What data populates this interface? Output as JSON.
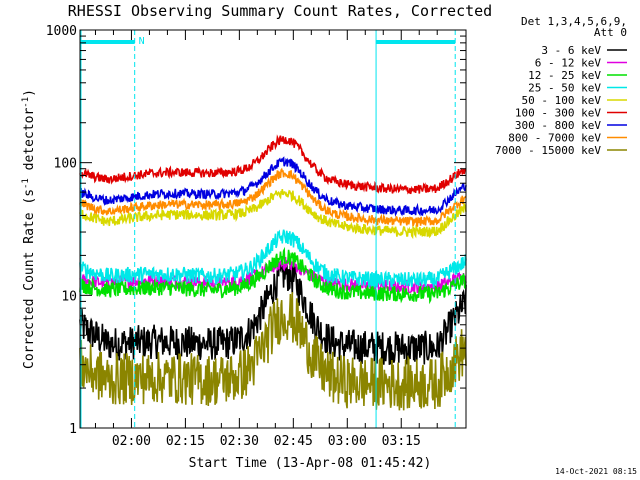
{
  "chart_data": {
    "type": "line",
    "title": "RHESSI Observing Summary Count Rates, Corrected",
    "xlabel": "Start Time (13-Apr-08 01:45:42)",
    "ylabel_parts": {
      "main": "Corrected Count Rate (s",
      "sup1": "-1",
      "mid": " detector",
      "sup2": "-1",
      "end": ")"
    },
    "y_scale": "log",
    "ylim": [
      1,
      1000
    ],
    "xlim_minutes": [
      105.7,
      213.0
    ],
    "x_ticks": [
      {
        "min": 120,
        "label": "02:00"
      },
      {
        "min": 135,
        "label": "02:15"
      },
      {
        "min": 150,
        "label": "02:30"
      },
      {
        "min": 165,
        "label": "02:45"
      },
      {
        "min": 180,
        "label": "03:00"
      },
      {
        "min": 195,
        "label": "03:15"
      }
    ],
    "y_ticks": [
      {
        "value": 1,
        "label": "1"
      },
      {
        "value": 10,
        "label": "10"
      },
      {
        "value": 100,
        "label": "100"
      },
      {
        "value": 1000,
        "label": "1000"
      }
    ],
    "legend_header": [
      "Det 1,3,4,5,6,9,",
      "Att 0"
    ],
    "night_marker": {
      "label": "N",
      "color": "#00e5ee",
      "intervals": [
        [
          105.7,
          120.9
        ],
        [
          188.0,
          210.0
        ]
      ]
    },
    "timestamp": "14-Oct-2021 08:15",
    "shape": {
      "peak_min": 163,
      "peak_width": 7.5,
      "trough_min": 142,
      "trough_width": 11,
      "wave_amp": 0.22,
      "wave_period": 112
    },
    "series": [
      {
        "name": "3 - 6 keV",
        "color": "#000000",
        "base": 4.3,
        "peak": 14,
        "edge": [
          6,
          9
        ],
        "noise": 0.13
      },
      {
        "name": "6 - 12 keV",
        "color": "#e000e0",
        "base": 12.5,
        "peak": 17,
        "edge": [
          13,
          14
        ],
        "noise": 0.05
      },
      {
        "name": "12 - 25 keV",
        "color": "#00e000",
        "base": 11,
        "peak": 19,
        "edge": [
          12,
          13
        ],
        "noise": 0.06
      },
      {
        "name": "25 - 50 keV",
        "color": "#00e8e8",
        "base": 14,
        "peak": 27,
        "edge": [
          16,
          18
        ],
        "noise": 0.06
      },
      {
        "name": "50 - 100 keV",
        "color": "#d8d800",
        "base": 36,
        "peak": 55,
        "edge": [
          42,
          46
        ],
        "noise": 0.04
      },
      {
        "name": "100 - 300 keV",
        "color": "#e00000",
        "base": 75,
        "peak": 140,
        "edge": [
          85,
          90
        ],
        "noise": 0.035
      },
      {
        "name": "300 - 800 keV",
        "color": "#0000e0",
        "base": 52,
        "peak": 95,
        "edge": [
          60,
          68
        ],
        "noise": 0.035
      },
      {
        "name": "800 - 7000 keV",
        "color": "#ff8c00",
        "base": 43,
        "peak": 78,
        "edge": [
          50,
          55
        ],
        "noise": 0.035
      },
      {
        "name": "7000 - 15000 keV",
        "color": "#8b8500",
        "base": 2.3,
        "peak": 7,
        "edge": [
          3,
          4
        ],
        "noise": 0.2
      }
    ]
  }
}
